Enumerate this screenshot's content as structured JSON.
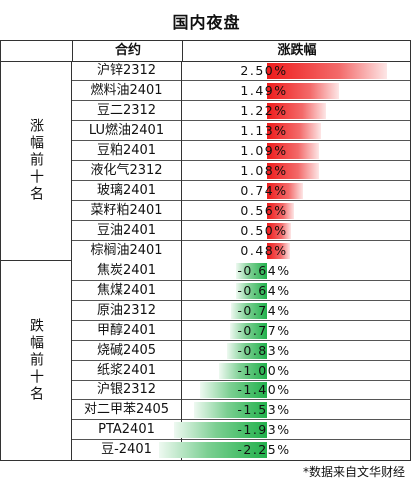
{
  "title": "国内夜盘",
  "header": {
    "name_col": "合约",
    "value_col": "涨跌幅"
  },
  "groups": {
    "top": "涨幅前十名",
    "bottom": "跌幅前十名"
  },
  "footer": "*数据来自文华财经",
  "colors": {
    "up": "#ee1c1c",
    "down": "#22b14c"
  },
  "chart_data": {
    "type": "bar",
    "title": "国内夜盘",
    "categories": [
      "沪锌2312",
      "燃料油2401",
      "豆二2312",
      "LU燃油2401",
      "豆粕2401",
      "液化气2312",
      "玻璃2401",
      "菜籽粕2401",
      "豆油2401",
      "棕榈油2401",
      "焦炭2401",
      "焦煤2401",
      "原油2312",
      "甲醇2401",
      "烧碱2405",
      "纸浆2401",
      "沪银2312",
      "对二甲苯2405",
      "PTA2401",
      "豆-2401"
    ],
    "values": [
      2.5,
      1.49,
      1.22,
      1.13,
      1.09,
      1.08,
      0.74,
      0.56,
      0.5,
      0.48,
      -0.64,
      -0.64,
      -0.74,
      -0.77,
      -0.83,
      -1.0,
      -1.4,
      -1.53,
      -1.93,
      -2.25
    ],
    "labels": [
      "2.50%",
      "1.49%",
      "1.22%",
      "1.13%",
      "1.09%",
      "1.08%",
      "0.74%",
      "0.56%",
      "0.50%",
      "0.48%",
      "-0.64%",
      "-0.64%",
      "-0.74%",
      "-0.77%",
      "-0.83%",
      "-1.00%",
      "-1.40%",
      "-1.53%",
      "-1.93%",
      "-2.25%"
    ],
    "xlim": [
      -2.25,
      2.5
    ]
  }
}
